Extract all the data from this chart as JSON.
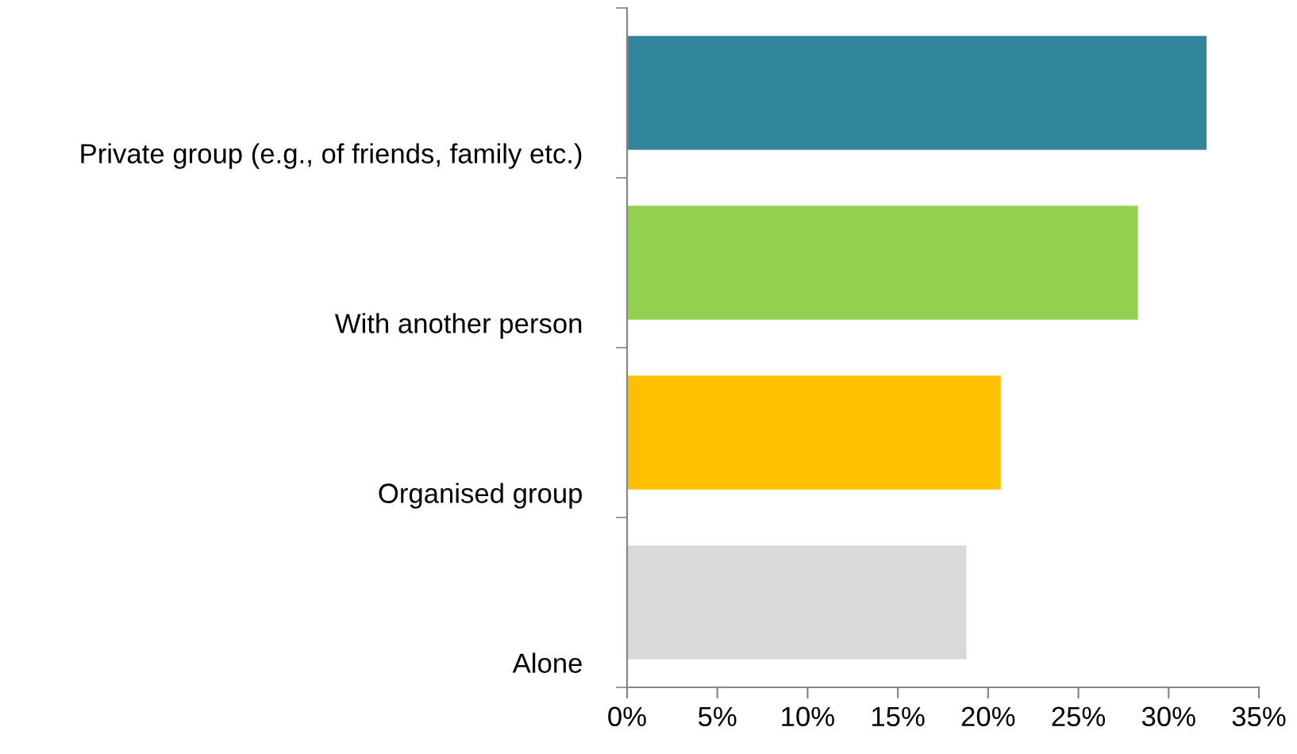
{
  "chart_data": {
    "type": "bar",
    "orientation": "horizontal",
    "categories": [
      "Private group (e.g., of friends, family etc.)",
      "With another person",
      "Organised group",
      "Alone"
    ],
    "values": [
      32.1,
      28.3,
      20.7,
      18.8
    ],
    "colors": [
      "#31869b",
      "#92d050",
      "#ffc000",
      "#d9d9d9"
    ],
    "xlim": [
      0,
      35
    ],
    "xticks": [
      {
        "value": 0,
        "label": "0%"
      },
      {
        "value": 5,
        "label": "5%"
      },
      {
        "value": 10,
        "label": "10%"
      },
      {
        "value": 15,
        "label": "15%"
      },
      {
        "value": 20,
        "label": "20%"
      },
      {
        "value": 25,
        "label": "25%"
      },
      {
        "value": 30,
        "label": "30%"
      },
      {
        "value": 35,
        "label": "35%"
      }
    ],
    "grid": false,
    "legend": false
  }
}
